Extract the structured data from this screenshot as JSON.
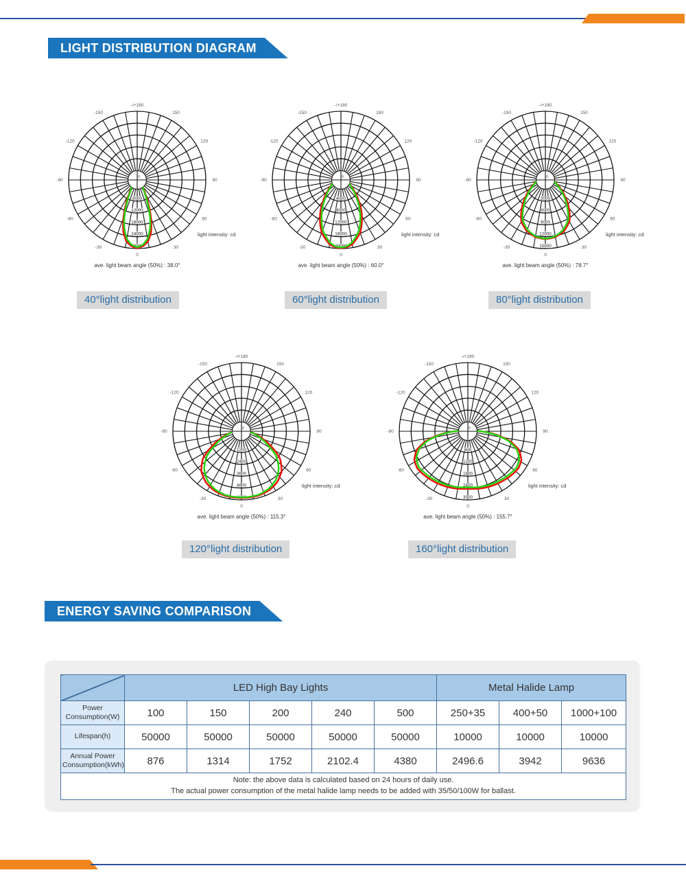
{
  "sections": {
    "section1_title": "LIGHT DISTRIBUTION DIAGRAM",
    "section2_title": "ENERGY SAVING COMPARISON"
  },
  "colors": {
    "banner_blue": "#1b75bd",
    "accent_orange": "#f0861d",
    "rule_blue": "#2b4fa0",
    "curve_green": "#28d411",
    "curve_red": "#e8140c",
    "table_border_blue": "#44719f",
    "table_header_fill": "#a6c9e8",
    "table_label_fill": "#dbe9f8",
    "badge_gray": "#d9d9d9",
    "badge_text_blue": "#2a6da8"
  },
  "polar": {
    "side_label": "light intensity:  cd",
    "beam_prefix": "ave. light beam angle  (50%)  :  ",
    "angle_labels": [
      [
        -150,
        "-150"
      ],
      [
        -120,
        "-120"
      ],
      [
        -90,
        "-90"
      ],
      [
        -60,
        "-60"
      ],
      [
        -30,
        "-30"
      ],
      [
        30,
        "30"
      ],
      [
        60,
        "60"
      ],
      [
        90,
        "90"
      ],
      [
        120,
        "120"
      ],
      [
        150,
        "150"
      ],
      [
        180,
        "-/+180"
      ],
      [
        0,
        "0"
      ]
    ]
  },
  "chart_data": [
    {
      "type": "line",
      "subtype": "polar",
      "badge": "40°light distribution",
      "beam_angle": "38.0°",
      "scale_max": 30000,
      "ring_labels": [
        "6000",
        "12000",
        "18000",
        "24000",
        "30000"
      ],
      "angles": [
        -40,
        -35,
        -30,
        -25,
        -20,
        -15,
        -10,
        -5,
        0,
        5,
        10,
        15,
        20,
        25,
        30,
        35,
        40
      ],
      "green": [
        0,
        700,
        2500,
        7000,
        13800,
        20500,
        25500,
        28200,
        29300,
        28200,
        25500,
        20500,
        13800,
        7000,
        2500,
        700,
        0
      ],
      "red": [
        0,
        1100,
        3600,
        8800,
        15500,
        22500,
        26800,
        28900,
        29800,
        28900,
        26800,
        22500,
        15500,
        8800,
        3600,
        1100,
        0
      ]
    },
    {
      "type": "line",
      "subtype": "polar",
      "badge": "60°light distribution",
      "beam_angle": "60.0°",
      "scale_max": 20000,
      "ring_labels": [
        "4000",
        "8000",
        "12000",
        "16000",
        "20000"
      ],
      "angles": [
        -68,
        -60,
        -50,
        -40,
        -30,
        -20,
        -10,
        -5,
        0,
        5,
        10,
        20,
        30,
        40,
        50,
        60,
        68
      ],
      "green": [
        0,
        450,
        2100,
        5200,
        9800,
        14800,
        18300,
        19300,
        19600,
        19300,
        18300,
        14800,
        9800,
        5200,
        2100,
        450,
        0
      ],
      "red": [
        0,
        700,
        2700,
        6200,
        11000,
        15800,
        18900,
        19600,
        19800,
        19600,
        18900,
        15800,
        11000,
        6200,
        2700,
        700,
        0
      ]
    },
    {
      "type": "line",
      "subtype": "polar",
      "badge": "80°light distribution",
      "beam_angle": "78.7°",
      "scale_max": 15000,
      "ring_labels": [
        "3000",
        "6000",
        "9000",
        "12000",
        "15000"
      ],
      "angles": [
        -80,
        -70,
        -60,
        -50,
        -40,
        -30,
        -20,
        -10,
        0,
        10,
        20,
        30,
        40,
        50,
        60,
        70,
        80
      ],
      "green": [
        0,
        500,
        1700,
        3600,
        6100,
        9200,
        11000,
        12100,
        12500,
        12100,
        11000,
        9200,
        6100,
        3600,
        1700,
        500,
        0
      ],
      "red": [
        0,
        700,
        2100,
        4100,
        6900,
        9800,
        11400,
        12300,
        12600,
        12300,
        11400,
        9800,
        6900,
        4100,
        2100,
        700,
        0
      ]
    },
    {
      "type": "line",
      "subtype": "polar",
      "badge": "120°light distribution",
      "beam_angle": "115.3°",
      "scale_max": 6000,
      "ring_labels": [
        "1200",
        "2400",
        "3600",
        "4800",
        "6000"
      ],
      "angles": [
        -85,
        -78,
        -70,
        -62,
        -55,
        -45,
        -35,
        -25,
        -15,
        0,
        15,
        25,
        35,
        45,
        55,
        62,
        70,
        78,
        85
      ],
      "green": [
        0,
        400,
        1100,
        2100,
        3300,
        4400,
        5100,
        5500,
        5700,
        5750,
        5700,
        5500,
        5100,
        4400,
        3300,
        2100,
        1100,
        400,
        0
      ],
      "red": [
        0,
        500,
        1400,
        2600,
        3800,
        4800,
        5350,
        5650,
        5780,
        5800,
        5780,
        5650,
        5350,
        4800,
        3800,
        2600,
        1400,
        500,
        0
      ]
    },
    {
      "type": "line",
      "subtype": "polar",
      "badge": "160°light distribution",
      "beam_angle": "155.7°",
      "scale_max": 3000,
      "ring_labels": [
        "600",
        "1200",
        "1800",
        "2400",
        "3000"
      ],
      "angles": [
        -92,
        -88,
        -83,
        -77,
        -70,
        -62,
        -54,
        -45,
        -35,
        -25,
        -15,
        0,
        15,
        25,
        35,
        45,
        54,
        62,
        70,
        77,
        83,
        88,
        92
      ],
      "green": [
        0,
        350,
        900,
        1600,
        2150,
        2480,
        2600,
        2560,
        2500,
        2460,
        2420,
        2360,
        2420,
        2460,
        2500,
        2560,
        2600,
        2480,
        2150,
        1600,
        900,
        350,
        0
      ],
      "red": [
        0,
        380,
        980,
        1700,
        2280,
        2600,
        2700,
        2660,
        2600,
        2550,
        2500,
        2430,
        2500,
        2550,
        2600,
        2660,
        2700,
        2600,
        2280,
        1700,
        980,
        380,
        0
      ]
    }
  ],
  "table": {
    "group_headers": [
      "LED High Bay Lights",
      "Metal Halide Lamp"
    ],
    "rows": [
      {
        "label": "Power Consumption(W)",
        "values": [
          "100",
          "150",
          "200",
          "240",
          "500",
          "250+35",
          "400+50",
          "1000+100"
        ]
      },
      {
        "label": "Lifespan(h)",
        "values": [
          "50000",
          "50000",
          "50000",
          "50000",
          "50000",
          "10000",
          "10000",
          "10000"
        ]
      },
      {
        "label": "Annual Power Consumption(kWh)",
        "values": [
          "876",
          "1314",
          "1752",
          "2102.4",
          "4380",
          "2496.6",
          "3942",
          "9636"
        ]
      }
    ],
    "note_line1": "Note: the above data is calculated based on 24 hours of daily use.",
    "note_line2": "The actual power consumption of the metal halide lamp needs to be added with 35/50/100W for ballast."
  }
}
